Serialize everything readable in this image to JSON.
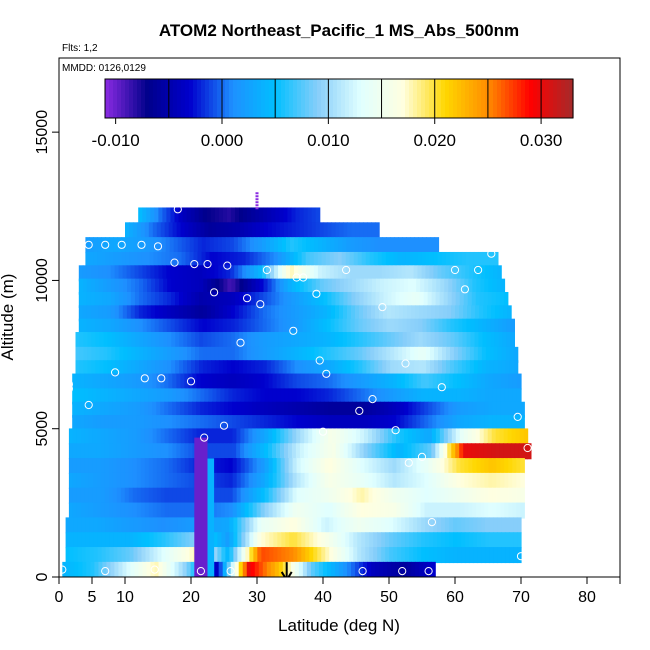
{
  "chart_data": {
    "type": "heatmap",
    "title": "ATOM2 Northeast_Pacific_1 MS_Abs_500nm",
    "annotations": {
      "flights": "Flts: 1,2",
      "dates": "MMDD: 0126,0129"
    },
    "xlabel": "Latitude (deg N)",
    "ylabel": "Altitude (m)",
    "xlim": [
      0,
      85
    ],
    "ylim": [
      0,
      17500
    ],
    "x_ticks": [
      0,
      5,
      10,
      20,
      30,
      40,
      50,
      60,
      70,
      80
    ],
    "y_ticks": [
      0,
      5000,
      10000,
      15000
    ],
    "colorbar": {
      "range": [
        -0.011,
        0.033
      ],
      "ticks": [
        -0.01,
        0.0,
        0.01,
        0.02,
        0.03
      ],
      "tick_labels": [
        "-0.010",
        "0.000",
        "0.010",
        "0.020",
        "0.030"
      ],
      "colors": [
        "#8a2be2",
        "#00008b",
        "#0000cd",
        "#1e90ff",
        "#00bfff",
        "#87cefa",
        "#e0ffff",
        "#ffffe0",
        "#ffd700",
        "#ff8c00",
        "#ff0000",
        "#a52a2a"
      ]
    },
    "layers": [
      {
        "alt": 12200,
        "x0": 12,
        "x1": 39.5,
        "v": [
          0.005,
          0.0,
          -0.004,
          -0.007,
          -0.008,
          -0.006,
          -0.004,
          -0.002,
          -0.001
        ]
      },
      {
        "alt": 11700,
        "x0": 10,
        "x1": 48.5,
        "v": [
          0.004,
          0.0,
          -0.003,
          -0.006,
          -0.005,
          -0.003,
          -0.002,
          -0.001,
          0.0,
          0.0
        ]
      },
      {
        "alt": 11200,
        "x0": 4,
        "x1": 57.5,
        "v": [
          0.002,
          0.003,
          0.002,
          0.0,
          -0.002,
          -0.001,
          0.002,
          0.006,
          0.004,
          0.002,
          0.001,
          0.001,
          0.001
        ]
      },
      {
        "alt": 10700,
        "x0": 4,
        "x1": 66.5,
        "v": [
          0.003,
          0.002,
          0.001,
          0.0,
          -0.003,
          -0.002,
          0.001,
          0.007,
          0.009,
          0.006,
          0.004,
          0.005,
          0.006,
          0.006
        ]
      },
      {
        "alt": 10250,
        "x0": 3,
        "x1": 67,
        "v": [
          0.002,
          0.001,
          -0.001,
          -0.003,
          -0.004,
          -0.002,
          0.004,
          0.018,
          0.012,
          0.01,
          0.01,
          0.011,
          0.008,
          0.006,
          0.004
        ]
      },
      {
        "alt": 9800,
        "x0": 3,
        "x1": 67.5,
        "v": [
          0.004,
          0.002,
          0.0,
          -0.003,
          -0.004,
          -0.009,
          -0.003,
          0.004,
          0.008,
          0.01,
          0.012,
          0.013,
          0.01,
          0.006,
          0.004
        ]
      },
      {
        "alt": 9350,
        "x0": 3,
        "x1": 68,
        "v": [
          0.004,
          0.003,
          0.0,
          -0.002,
          -0.005,
          -0.004,
          -0.001,
          0.002,
          0.005,
          0.009,
          0.012,
          0.014,
          0.01,
          0.006,
          0.005
        ]
      },
      {
        "alt": 8900,
        "x0": 3,
        "x1": 68.5,
        "v": [
          0.003,
          0.002,
          -0.002,
          -0.004,
          -0.006,
          -0.003,
          0.0,
          0.002,
          0.004,
          0.008,
          0.011,
          0.01,
          0.009,
          0.006,
          0.004
        ]
      },
      {
        "alt": 8450,
        "x0": 3,
        "x1": 69,
        "v": [
          0.004,
          0.003,
          0.001,
          -0.001,
          -0.003,
          -0.002,
          0.0,
          0.002,
          0.005,
          0.008,
          0.01,
          0.009,
          0.006,
          0.004,
          0.002
        ]
      },
      {
        "alt": 8000,
        "x0": 2.5,
        "x1": 69,
        "v": [
          0.006,
          0.005,
          0.003,
          0.001,
          -0.001,
          0.0,
          0.002,
          0.003,
          0.004,
          0.006,
          0.008,
          0.01,
          0.008,
          0.005,
          0.003
        ]
      },
      {
        "alt": 7500,
        "x0": 2.5,
        "x1": 69.5,
        "v": [
          0.007,
          0.006,
          0.004,
          0.002,
          0.0,
          0.0,
          0.002,
          0.004,
          0.006,
          0.008,
          0.011,
          0.014,
          0.009,
          0.005,
          0.003
        ]
      },
      {
        "alt": 7050,
        "x0": 2.5,
        "x1": 69.5,
        "v": [
          0.006,
          0.005,
          0.003,
          0.001,
          -0.002,
          -0.003,
          -0.002,
          0.001,
          0.003,
          0.006,
          0.01,
          0.011,
          0.007,
          0.004,
          0.003
        ]
      },
      {
        "alt": 6600,
        "x0": 2,
        "x1": 70,
        "v": [
          0.004,
          0.003,
          0.002,
          0.0,
          -0.003,
          -0.004,
          -0.003,
          -0.001,
          0.0,
          0.002,
          0.004,
          0.007,
          0.005,
          0.003,
          0.002
        ]
      },
      {
        "alt": 6100,
        "x0": 2,
        "x1": 70,
        "v": [
          0.005,
          0.004,
          0.003,
          0.002,
          0.0,
          -0.002,
          -0.003,
          -0.003,
          -0.002,
          0.0,
          0.002,
          0.004,
          0.004,
          0.003,
          0.003
        ]
      },
      {
        "alt": 5650,
        "x0": 2,
        "x1": 70.5,
        "v": [
          0.004,
          0.003,
          0.002,
          0.0,
          -0.002,
          -0.003,
          -0.004,
          -0.005,
          -0.006,
          -0.006,
          -0.004,
          -0.001,
          0.002,
          0.003,
          0.003
        ]
      },
      {
        "alt": 5200,
        "x0": 2,
        "x1": 70.5,
        "v": [
          0.003,
          0.002,
          0.002,
          0.001,
          0.0,
          -0.001,
          -0.002,
          -0.003,
          -0.004,
          -0.004,
          -0.003,
          0.0,
          0.003,
          0.004,
          0.004
        ]
      },
      {
        "alt": 4750,
        "x0": 1.5,
        "x1": 71,
        "v": [
          0.004,
          0.003,
          0.002,
          0.0,
          -0.002,
          -0.002,
          0.003,
          0.01,
          0.016,
          0.012,
          0.006,
          0.003,
          0.014,
          0.02,
          0.022
        ]
      },
      {
        "alt": 4250,
        "x0": 1.5,
        "x1": 71.5,
        "v": [
          0.003,
          0.003,
          0.002,
          0.001,
          -0.001,
          -0.001,
          0.005,
          0.012,
          0.016,
          0.009,
          0.004,
          0.008,
          0.03,
          0.031,
          0.031
        ]
      },
      {
        "alt": 3750,
        "x0": 1.5,
        "x1": 70.5,
        "v": [
          0.002,
          0.002,
          0.001,
          0.0,
          -0.002,
          -0.003,
          0.002,
          0.012,
          0.017,
          0.013,
          0.01,
          0.014,
          0.02,
          0.022,
          0.02
        ]
      },
      {
        "alt": 3250,
        "x0": 1.5,
        "x1": 70.5,
        "v": [
          0.003,
          0.002,
          0.001,
          0.0,
          -0.001,
          -0.002,
          0.003,
          0.011,
          0.016,
          0.014,
          0.011,
          0.013,
          0.017,
          0.018,
          0.017
        ]
      },
      {
        "alt": 2750,
        "x0": 1.5,
        "x1": 70.5,
        "v": [
          0.002,
          0.002,
          0.0,
          -0.001,
          -0.001,
          -0.001,
          0.005,
          0.013,
          0.015,
          0.018,
          0.015,
          0.013,
          0.015,
          0.017,
          0.016
        ]
      },
      {
        "alt": 2250,
        "x0": 1.5,
        "x1": 70.5,
        "v": [
          0.003,
          0.002,
          0.001,
          0.0,
          0.0,
          0.001,
          0.009,
          0.015,
          0.013,
          0.017,
          0.016,
          0.012,
          0.012,
          0.013,
          0.012
        ]
      },
      {
        "alt": 1750,
        "x0": 1,
        "x1": 70,
        "v": [
          0.003,
          0.003,
          0.002,
          0.001,
          0.002,
          0.003,
          0.014,
          0.017,
          0.012,
          0.015,
          0.013,
          0.01,
          0.008,
          0.009,
          0.009
        ]
      },
      {
        "alt": 1250,
        "x0": 1,
        "x1": 70,
        "v": [
          0.004,
          0.004,
          0.004,
          0.006,
          0.009,
          0.002,
          0.017,
          0.02,
          0.016,
          0.011,
          0.008,
          0.006,
          0.005,
          0.006,
          0.006
        ]
      },
      {
        "alt": 750,
        "x0": 1,
        "x1": 70,
        "v": [
          0.005,
          0.006,
          0.008,
          0.013,
          0.018,
          0.004,
          0.027,
          0.025,
          0.018,
          0.011,
          0.007,
          0.005,
          0.004,
          0.004,
          0.004
        ]
      },
      {
        "alt": 250,
        "x0": 0.5,
        "x1": 57,
        "v": [
          0.004,
          0.006,
          0.012,
          0.018,
          0.009,
          -0.004,
          0.03,
          0.022,
          0.008,
          0.002,
          -0.004,
          -0.006,
          -0.003
        ]
      }
    ],
    "dark_columns": [
      {
        "x0": 20.5,
        "x1": 22.5,
        "alt0": 0,
        "alt1": 4700,
        "value": -0.01
      },
      {
        "x0": 22.5,
        "x1": 23.5,
        "alt0": 0,
        "alt1": 4000,
        "value": 0.004
      }
    ],
    "points": [
      [
        18,
        12400
      ],
      [
        10.5,
        12300
      ],
      [
        1,
        11200
      ],
      [
        4.5,
        11200
      ],
      [
        7,
        11200
      ],
      [
        9.5,
        11200
      ],
      [
        12.5,
        11200
      ],
      [
        15,
        11150
      ],
      [
        65.5,
        10900
      ],
      [
        17.5,
        10600
      ],
      [
        20.5,
        10550
      ],
      [
        22.5,
        10550
      ],
      [
        25.5,
        10500
      ],
      [
        31.5,
        10350
      ],
      [
        36,
        10100
      ],
      [
        37,
        10100
      ],
      [
        43.5,
        10350
      ],
      [
        60,
        10350
      ],
      [
        63.5,
        10350
      ],
      [
        23.5,
        9600
      ],
      [
        28.5,
        9400
      ],
      [
        30.5,
        9200
      ],
      [
        39,
        9550
      ],
      [
        49,
        9100
      ],
      [
        61.5,
        9700
      ],
      [
        35.5,
        8300
      ],
      [
        27.5,
        7900
      ],
      [
        39.5,
        7300
      ],
      [
        40.5,
        6850
      ],
      [
        52.5,
        7200
      ],
      [
        8.5,
        6900
      ],
      [
        13,
        6700
      ],
      [
        15.5,
        6700
      ],
      [
        20,
        6600
      ],
      [
        1.5,
        6500
      ],
      [
        1.5,
        6350
      ],
      [
        58,
        6400
      ],
      [
        45.5,
        5600
      ],
      [
        47.5,
        6000
      ],
      [
        4.5,
        5800
      ],
      [
        69.5,
        5400
      ],
      [
        25,
        5100
      ],
      [
        22,
        4700
      ],
      [
        40,
        4900
      ],
      [
        51,
        4950
      ],
      [
        53,
        3850
      ],
      [
        55,
        4050
      ],
      [
        71,
        4350
      ],
      [
        56.5,
        1850
      ],
      [
        70,
        700
      ],
      [
        7,
        200
      ],
      [
        14.5,
        250
      ],
      [
        21.5,
        200
      ],
      [
        26,
        200
      ],
      [
        46,
        200
      ],
      [
        52,
        200
      ],
      [
        56,
        200
      ],
      [
        0.5,
        250
      ]
    ],
    "purple_marker": {
      "x": 30,
      "alt0": 12400,
      "alt1": 13000
    },
    "arrow": {
      "x": 34.5,
      "alt_from": 500,
      "alt_to": -100
    }
  }
}
